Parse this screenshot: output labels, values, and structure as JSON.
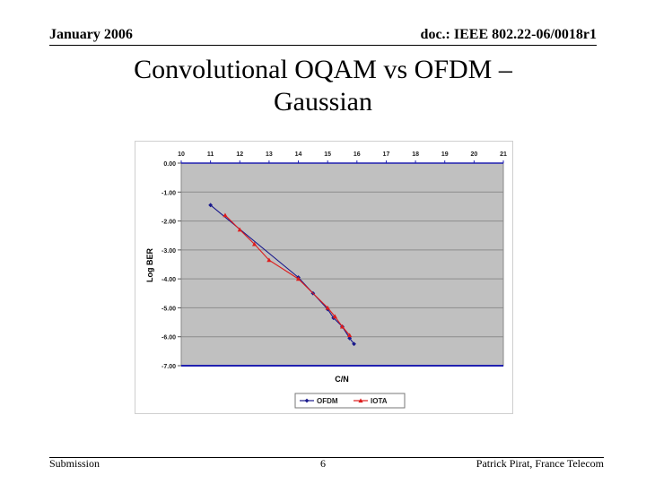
{
  "header": {
    "date": "January 2006",
    "doc_id": "doc.: IEEE 802.22-06/0018r1"
  },
  "slide": {
    "title_line1": "Convolutional OQAM vs OFDM –",
    "title_line2": "Gaussian"
  },
  "footer": {
    "left": "Submission",
    "page_number": "6",
    "author": "Patrick Pirat, France Telecom"
  },
  "colors": {
    "plot_bg": "#c0c0c0",
    "axis": "#1f1fb0",
    "ofdm": "#1a1a8c",
    "iota": "#dd1c1c"
  },
  "chart_data": {
    "type": "line",
    "title": "",
    "xlabel": "C/N",
    "ylabel": "Log BER",
    "x_ticks": [
      "10",
      "11",
      "12",
      "13",
      "14",
      "15",
      "16",
      "17",
      "18",
      "19",
      "20",
      "21"
    ],
    "y_ticks": [
      "0.00",
      "-1.00",
      "-2.00",
      "-3.00",
      "-4.00",
      "-5.00",
      "-6.00",
      "-7.00"
    ],
    "xlim": [
      10,
      21
    ],
    "ylim": [
      -7,
      0
    ],
    "grid": true,
    "legend_position": "bottom",
    "series": [
      {
        "name": "OFDM",
        "color": "#1a1a8c",
        "marker": "diamond",
        "x": [
          11.0,
          14.0,
          14.5,
          15.0,
          15.2,
          15.5,
          15.75,
          15.9
        ],
        "y": [
          -1.45,
          -3.95,
          -4.5,
          -5.05,
          -5.35,
          -5.65,
          -6.05,
          -6.25
        ]
      },
      {
        "name": "IOTA",
        "color": "#dd1c1c",
        "marker": "triangle",
        "x": [
          11.5,
          12.0,
          12.5,
          13.0,
          14.0,
          15.0,
          15.25,
          15.5,
          15.75
        ],
        "y": [
          -1.8,
          -2.3,
          -2.8,
          -3.35,
          -4.0,
          -5.0,
          -5.3,
          -5.65,
          -5.95
        ]
      }
    ]
  }
}
